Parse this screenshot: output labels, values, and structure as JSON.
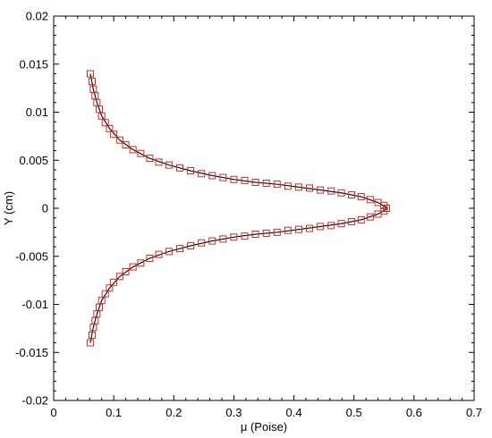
{
  "chart_data": {
    "type": "scatter",
    "xlabel": "μ (Poise)",
    "ylabel": "Y (cm)",
    "xlim": [
      0,
      0.7
    ],
    "ylim": [
      -0.02,
      0.02
    ],
    "x_ticks": [
      0,
      0.1,
      0.2,
      0.3,
      0.4,
      0.5,
      0.6,
      0.7
    ],
    "x_tick_labels": [
      "0",
      "0.1",
      "0.2",
      "0.3",
      "0.4",
      "0.5",
      "0.6",
      "0.7"
    ],
    "y_ticks": [
      0.02,
      0.015,
      0.01,
      0.005,
      0,
      -0.005,
      -0.01,
      -0.015,
      -0.02
    ],
    "y_tick_labels": [
      "0.02",
      "0.015",
      "0.01",
      "0.005",
      "0",
      "-0.005",
      "-0.01",
      "-0.015",
      "-0.02"
    ],
    "grid": false,
    "series": [
      {
        "kind": "markers",
        "marker": "square",
        "color": "#cc2a2a",
        "points": [
          [
            0.061,
            0.014
          ],
          [
            0.064,
            0.0132
          ],
          [
            0.066,
            0.0124
          ],
          [
            0.069,
            0.0117
          ],
          [
            0.072,
            0.011
          ],
          [
            0.076,
            0.0103
          ],
          [
            0.08,
            0.0096
          ],
          [
            0.086,
            0.0089
          ],
          [
            0.093,
            0.0083
          ],
          [
            0.1,
            0.0077
          ],
          [
            0.11,
            0.0071
          ],
          [
            0.12,
            0.0066
          ],
          [
            0.132,
            0.0061
          ],
          [
            0.145,
            0.0057
          ],
          [
            0.16,
            0.0052
          ],
          [
            0.175,
            0.0048
          ],
          [
            0.192,
            0.0045
          ],
          [
            0.21,
            0.0042
          ],
          [
            0.228,
            0.0039
          ],
          [
            0.246,
            0.0036
          ],
          [
            0.264,
            0.0034
          ],
          [
            0.282,
            0.0032
          ],
          [
            0.3,
            0.003
          ],
          [
            0.318,
            0.0029
          ],
          [
            0.336,
            0.0027
          ],
          [
            0.354,
            0.0026
          ],
          [
            0.372,
            0.0025
          ],
          [
            0.39,
            0.0023
          ],
          [
            0.408,
            0.0022
          ],
          [
            0.426,
            0.0021
          ],
          [
            0.444,
            0.0019
          ],
          [
            0.462,
            0.0018
          ],
          [
            0.479,
            0.0016
          ],
          [
            0.496,
            0.0014
          ],
          [
            0.512,
            0.0012
          ],
          [
            0.527,
            0.0009
          ],
          [
            0.54,
            0.0006
          ],
          [
            0.55,
            0.0003
          ],
          [
            0.554,
            0.0
          ],
          [
            0.55,
            -0.0003
          ],
          [
            0.54,
            -0.0006
          ],
          [
            0.527,
            -0.0009
          ],
          [
            0.512,
            -0.0012
          ],
          [
            0.496,
            -0.0014
          ],
          [
            0.479,
            -0.0016
          ],
          [
            0.462,
            -0.0018
          ],
          [
            0.444,
            -0.0019
          ],
          [
            0.426,
            -0.0021
          ],
          [
            0.408,
            -0.0022
          ],
          [
            0.39,
            -0.0023
          ],
          [
            0.372,
            -0.0025
          ],
          [
            0.354,
            -0.0026
          ],
          [
            0.336,
            -0.0027
          ],
          [
            0.318,
            -0.0029
          ],
          [
            0.3,
            -0.003
          ],
          [
            0.282,
            -0.0032
          ],
          [
            0.264,
            -0.0034
          ],
          [
            0.246,
            -0.0036
          ],
          [
            0.228,
            -0.0039
          ],
          [
            0.21,
            -0.0042
          ],
          [
            0.192,
            -0.0045
          ],
          [
            0.175,
            -0.0048
          ],
          [
            0.16,
            -0.0052
          ],
          [
            0.145,
            -0.0057
          ],
          [
            0.132,
            -0.0061
          ],
          [
            0.12,
            -0.0066
          ],
          [
            0.11,
            -0.0071
          ],
          [
            0.1,
            -0.0077
          ],
          [
            0.093,
            -0.0083
          ],
          [
            0.086,
            -0.0089
          ],
          [
            0.08,
            -0.0096
          ],
          [
            0.076,
            -0.0103
          ],
          [
            0.072,
            -0.011
          ],
          [
            0.069,
            -0.0117
          ],
          [
            0.066,
            -0.0124
          ],
          [
            0.064,
            -0.0132
          ],
          [
            0.061,
            -0.014
          ]
        ]
      },
      {
        "kind": "line",
        "color": "#000000",
        "points": [
          [
            0.061,
            0.014
          ],
          [
            0.066,
            0.0124
          ],
          [
            0.072,
            0.011
          ],
          [
            0.08,
            0.0096
          ],
          [
            0.093,
            0.0083
          ],
          [
            0.11,
            0.0071
          ],
          [
            0.132,
            0.0061
          ],
          [
            0.16,
            0.0052
          ],
          [
            0.192,
            0.0045
          ],
          [
            0.228,
            0.0039
          ],
          [
            0.264,
            0.0034
          ],
          [
            0.3,
            0.003
          ],
          [
            0.336,
            0.0027
          ],
          [
            0.372,
            0.0025
          ],
          [
            0.408,
            0.0022
          ],
          [
            0.444,
            0.0019
          ],
          [
            0.479,
            0.0016
          ],
          [
            0.512,
            0.0012
          ],
          [
            0.54,
            0.0006
          ],
          [
            0.551,
            0.0002
          ],
          [
            0.556,
            0.0
          ],
          [
            0.551,
            -0.0002
          ],
          [
            0.54,
            -0.0006
          ],
          [
            0.512,
            -0.0012
          ],
          [
            0.479,
            -0.0016
          ],
          [
            0.444,
            -0.0019
          ],
          [
            0.408,
            -0.0022
          ],
          [
            0.372,
            -0.0025
          ],
          [
            0.336,
            -0.0027
          ],
          [
            0.3,
            -0.003
          ],
          [
            0.264,
            -0.0034
          ],
          [
            0.228,
            -0.0039
          ],
          [
            0.192,
            -0.0045
          ],
          [
            0.16,
            -0.0052
          ],
          [
            0.132,
            -0.0061
          ],
          [
            0.11,
            -0.0071
          ],
          [
            0.093,
            -0.0083
          ],
          [
            0.08,
            -0.0096
          ],
          [
            0.072,
            -0.011
          ],
          [
            0.066,
            -0.0124
          ],
          [
            0.061,
            -0.014
          ]
        ]
      }
    ]
  }
}
